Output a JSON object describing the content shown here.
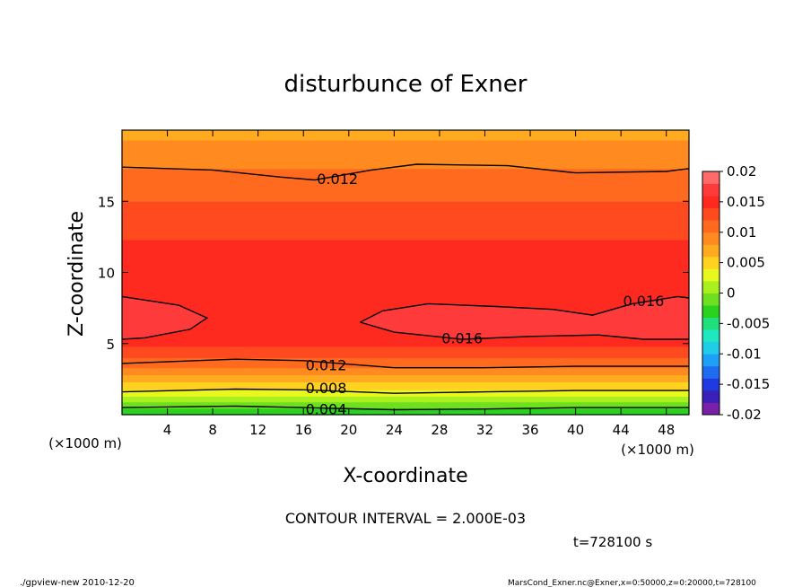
{
  "chart_data": {
    "type": "heatmap",
    "title": "disturbunce of Exner",
    "xlabel": "X-coordinate",
    "ylabel": "Z-coordinate",
    "x_unit_left": "(×1000 m)",
    "x_unit_right": "(×1000 m)",
    "xlim": [
      0,
      50
    ],
    "ylim": [
      0,
      20
    ],
    "xticks": [
      4,
      8,
      12,
      16,
      20,
      24,
      28,
      32,
      36,
      40,
      44,
      48
    ],
    "yticks": [
      5,
      10,
      15
    ],
    "contour_interval_text": "CONTOUR INTERVAL = 2.000E-03",
    "time_text": "t=728100 s",
    "footer_left": "./gpview-new   2010-12-20",
    "footer_right": "MarsCond_Exner.nc@Exner,x=0:50000,z=0:20000,t=728100",
    "colorbar": {
      "ticks": [
        "0.02",
        "0.015",
        "0.01",
        "0.005",
        "0",
        "-0.005",
        "-0.01",
        "-0.015",
        "-0.02"
      ],
      "range": [
        -0.02,
        0.02
      ],
      "colors": [
        "#7a1fa8",
        "#3a1fb8",
        "#1f3ae0",
        "#1f6cf0",
        "#1fa0f8",
        "#1fcde8",
        "#1fe8c0",
        "#1fe07a",
        "#2ad21f",
        "#6ee01f",
        "#aaf01f",
        "#e8f81f",
        "#ffd21f",
        "#ffaa1f",
        "#ff8a1f",
        "#ff6a1f",
        "#ff4a1f",
        "#ff2a1f",
        "#ff3a3a",
        "#ff6a6a"
      ]
    },
    "contour_labels": [
      {
        "text": "0.012",
        "x": 19,
        "z": 16.6
      },
      {
        "text": "0.016",
        "x": 46,
        "z": 8.0
      },
      {
        "text": "0.016",
        "x": 30,
        "z": 5.4
      },
      {
        "text": "0.012",
        "x": 18,
        "z": 3.5
      },
      {
        "text": "0.008",
        "x": 18,
        "z": 1.9
      },
      {
        "text": "0.004",
        "x": 18,
        "z": 0.4
      }
    ],
    "contour_lines": [
      {
        "level": 0.004,
        "points": [
          [
            0,
            0.5
          ],
          [
            10,
            0.6
          ],
          [
            16,
            0.5
          ],
          [
            24,
            0.35
          ],
          [
            32,
            0.4
          ],
          [
            40,
            0.5
          ],
          [
            50,
            0.5
          ]
        ]
      },
      {
        "level": 0.008,
        "points": [
          [
            0,
            1.6
          ],
          [
            10,
            1.8
          ],
          [
            16,
            1.75
          ],
          [
            24,
            1.5
          ],
          [
            32,
            1.6
          ],
          [
            40,
            1.7
          ],
          [
            50,
            1.7
          ]
        ]
      },
      {
        "level": 0.012,
        "points": [
          [
            0,
            3.6
          ],
          [
            10,
            3.9
          ],
          [
            16,
            3.8
          ],
          [
            24,
            3.3
          ],
          [
            32,
            3.3
          ],
          [
            40,
            3.4
          ],
          [
            50,
            3.4
          ]
        ]
      },
      {
        "level": 0.012,
        "points": [
          [
            0,
            17.4
          ],
          [
            8,
            17.2
          ],
          [
            14,
            16.7
          ],
          [
            17,
            16.5
          ],
          [
            22,
            17.2
          ],
          [
            26,
            17.6
          ],
          [
            34,
            17.5
          ],
          [
            40,
            17.0
          ],
          [
            48,
            17.1
          ],
          [
            50,
            17.3
          ]
        ]
      },
      {
        "level": 0.016,
        "points": [
          [
            0,
            8.3
          ],
          [
            5,
            7.7
          ],
          [
            7.5,
            6.8
          ],
          [
            6,
            6.0
          ],
          [
            2,
            5.4
          ],
          [
            0,
            5.3
          ]
        ]
      },
      {
        "level": 0.016,
        "points": [
          [
            21,
            6.5
          ],
          [
            23,
            7.3
          ],
          [
            27,
            7.8
          ],
          [
            33,
            7.6
          ],
          [
            38,
            7.4
          ],
          [
            41.5,
            7.0
          ],
          [
            45,
            7.8
          ],
          [
            49,
            8.3
          ],
          [
            50,
            8.2
          ]
        ]
      },
      {
        "level": 0.016,
        "points": [
          [
            21,
            6.5
          ],
          [
            24,
            5.8
          ],
          [
            30,
            5.3
          ],
          [
            36,
            5.5
          ],
          [
            42,
            5.6
          ],
          [
            46,
            5.3
          ],
          [
            50,
            5.3
          ]
        ]
      }
    ]
  }
}
